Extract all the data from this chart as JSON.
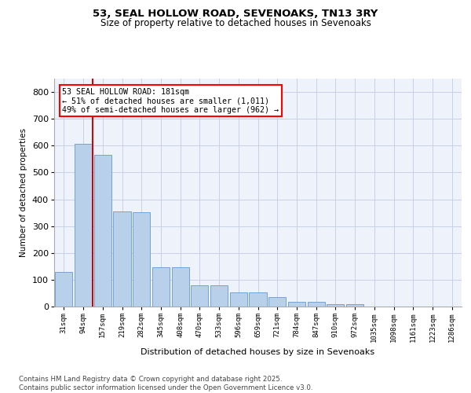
{
  "title1": "53, SEAL HOLLOW ROAD, SEVENOAKS, TN13 3RY",
  "title2": "Size of property relative to detached houses in Sevenoaks",
  "xlabel": "Distribution of detached houses by size in Sevenoaks",
  "ylabel": "Number of detached properties",
  "categories": [
    "31sqm",
    "94sqm",
    "157sqm",
    "219sqm",
    "282sqm",
    "345sqm",
    "408sqm",
    "470sqm",
    "533sqm",
    "596sqm",
    "659sqm",
    "721sqm",
    "784sqm",
    "847sqm",
    "910sqm",
    "972sqm",
    "1035sqm",
    "1098sqm",
    "1161sqm",
    "1223sqm",
    "1286sqm"
  ],
  "values": [
    130,
    607,
    565,
    355,
    353,
    148,
    148,
    78,
    78,
    52,
    52,
    35,
    18,
    18,
    10,
    10,
    0,
    0,
    0,
    0,
    0
  ],
  "bar_color": "#b8d0ea",
  "bar_edge_color": "#6699cc",
  "vline_x": 1.5,
  "vline_color": "#cc0000",
  "annotation_title": "53 SEAL HOLLOW ROAD: 181sqm",
  "annotation_line1": "← 51% of detached houses are smaller (1,011)",
  "annotation_line2": "49% of semi-detached houses are larger (962) →",
  "ylim": [
    0,
    850
  ],
  "yticks": [
    0,
    100,
    200,
    300,
    400,
    500,
    600,
    700,
    800
  ],
  "background_color": "#eef2fa",
  "grid_color": "#c8d0e8",
  "footer1": "Contains HM Land Registry data © Crown copyright and database right 2025.",
  "footer2": "Contains public sector information licensed under the Open Government Licence v3.0."
}
